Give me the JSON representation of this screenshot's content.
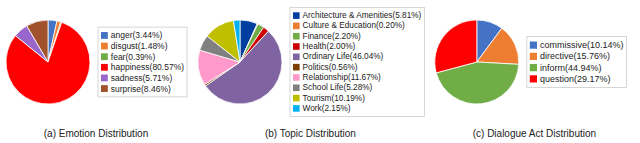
{
  "chart_data": [
    {
      "type": "pie",
      "title": "(a) Emotion Distribution",
      "categories": [
        "anger(3.44%)",
        "disgust(1.48%)",
        "fear(0.39%)",
        "happiness(80.57%)",
        "sadness(5.71%)",
        "surprise(8.46%)"
      ],
      "values": [
        3.44,
        1.48,
        0.39,
        80.57,
        5.71,
        8.46
      ],
      "colors": [
        "#4472c4",
        "#ed7d31",
        "#70ad47",
        "#ff0000",
        "#9966cc",
        "#a0522d"
      ],
      "legend": "right"
    },
    {
      "type": "pie",
      "title": "(b) Topic Distribution",
      "categories": [
        "Architecture & Amenities(5.81%)",
        "Culture & Education(0.20%)",
        "Finance(2.20%)",
        "Health(2.00%)",
        "Ordinary Life(46.04%)",
        "Politics(0.56%)",
        "Relationship(11.67%)",
        "School Life(5.28%)",
        "Tourism(10.19%)",
        "Work(2.15%)"
      ],
      "values": [
        5.81,
        0.2,
        2.2,
        2.0,
        46.04,
        0.56,
        11.67,
        5.28,
        10.19,
        2.15
      ],
      "colors": [
        "#003f9f",
        "#ed7d31",
        "#70ad47",
        "#cc0000",
        "#8064a2",
        "#7f3f00",
        "#ff99cc",
        "#808080",
        "#bfbf00",
        "#00b0f0"
      ],
      "legend": "right"
    },
    {
      "type": "pie",
      "title": "(c) Dialogue Act Distribution",
      "categories": [
        "commissive(10.14%)",
        "directive(15.76%)",
        "inform(44.94%)",
        "question(29.17%)"
      ],
      "values": [
        10.14,
        15.76,
        44.94,
        29.17
      ],
      "colors": [
        "#4472c4",
        "#ed7d31",
        "#70ad47",
        "#ff0000"
      ],
      "legend": "right"
    }
  ]
}
